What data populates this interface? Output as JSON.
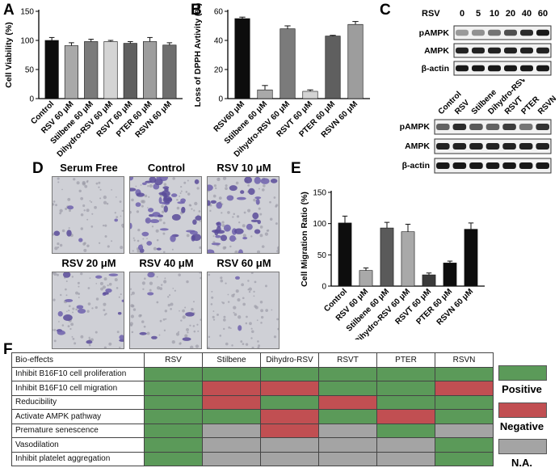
{
  "panels": {
    "a": "A",
    "b": "B",
    "c": "C",
    "d": "D",
    "e": "E",
    "f": "F"
  },
  "colors": {
    "positive": "#5b9a59",
    "negative": "#c14f52",
    "na": "#a4a4a4"
  },
  "chart_data": [
    {
      "id": "A",
      "type": "bar",
      "title": "",
      "xlabel": "",
      "ylabel": "Cell Viability (%)",
      "ylim": [
        0,
        150
      ],
      "yticks": [
        0,
        50,
        100,
        150
      ],
      "categories": [
        "Control",
        "RSV 60 μM",
        "Stilbene 60 μM",
        "Dihydro-RSV 60 μM",
        "RSVT 60 μM",
        "PTER 60 μM",
        "RSVN 60 μM"
      ],
      "values": [
        100,
        91,
        98,
        98,
        95,
        98,
        92
      ],
      "errors": [
        5,
        5,
        4,
        2,
        3,
        7,
        4
      ],
      "bar_colors": [
        "#0d0d0d",
        "#a9a9a9",
        "#7b7b7b",
        "#d4d4d4",
        "#5f5f5f",
        "#9d9d9d",
        "#6e6e6e"
      ],
      "grid": false
    },
    {
      "id": "B",
      "type": "bar",
      "title": "",
      "xlabel": "",
      "ylabel": "Loss of DPPH Avtivity (%)",
      "ylim": [
        0,
        60
      ],
      "yticks": [
        0,
        20,
        40,
        60
      ],
      "categories": [
        "RSV60 μM",
        "Stilbene 60 μM",
        "Dihydro-RSV 60 μM",
        "RSVT 60 μM",
        "PTER 60 μM",
        "RSVN 60 μM"
      ],
      "values": [
        55,
        6,
        48,
        5,
        43,
        51
      ],
      "errors": [
        1,
        3,
        2,
        1,
        0.5,
        2
      ],
      "bar_colors": [
        "#0d0d0d",
        "#a9a9a9",
        "#7b7b7b",
        "#d4d4d4",
        "#5f5f5f",
        "#9d9d9d"
      ],
      "grid": false
    },
    {
      "id": "E",
      "type": "bar",
      "title": "",
      "xlabel": "",
      "ylabel": "Cell Migration Ratio (%)",
      "ylim": [
        0,
        150
      ],
      "yticks": [
        0,
        50,
        100,
        150
      ],
      "categories": [
        "Control",
        "RSV 60 μM",
        "Stilbene 60 μM",
        "Dihydro-RSV 60 μM",
        "RSVT 60 μM",
        "PTER 60 μM",
        "RSVN 60 μM"
      ],
      "values": [
        101,
        25,
        93,
        87,
        18,
        37,
        91
      ],
      "errors": [
        11,
        4,
        9,
        12,
        3,
        3,
        10
      ],
      "bar_colors": [
        "#0d0d0d",
        "#a9a9a9",
        "#5a5a5a",
        "#a9a9a9",
        "#3a3a3a",
        "#0d0d0d",
        "#0d0d0d"
      ],
      "grid": false
    }
  ],
  "blot_top": {
    "treatment_label": "RSV",
    "doses": [
      "0",
      "5",
      "10",
      "20",
      "40",
      "60"
    ],
    "rows": [
      "pAMPK",
      "AMPK",
      "β-actin"
    ],
    "intensity": [
      [
        0.25,
        0.3,
        0.45,
        0.65,
        0.85,
        0.95
      ],
      [
        0.9,
        0.9,
        0.9,
        0.9,
        0.9,
        0.9
      ],
      [
        0.95,
        0.95,
        0.95,
        0.95,
        0.95,
        0.95
      ]
    ]
  },
  "blot_bottom": {
    "lanes": [
      "Control",
      "RSV",
      "Stilbene",
      "Dihydro-RSV",
      "RSVT",
      "PTER",
      "RSVN"
    ],
    "rows": [
      "pAMPK",
      "AMPK",
      "β-actin"
    ],
    "intensity": [
      [
        0.55,
        0.85,
        0.6,
        0.55,
        0.75,
        0.45,
        0.8
      ],
      [
        0.9,
        0.9,
        0.9,
        0.9,
        0.9,
        0.9,
        0.9
      ],
      [
        0.95,
        0.95,
        0.95,
        0.95,
        0.95,
        0.95,
        0.95
      ]
    ]
  },
  "micrographs": [
    {
      "label": "Serum Free",
      "density": 0.08
    },
    {
      "label": "Control",
      "density": 0.85
    },
    {
      "label": "RSV 10 μM",
      "density": 0.6
    },
    {
      "label": "RSV 20 μM",
      "density": 0.3
    },
    {
      "label": "RSV 40 μM",
      "density": 0.1
    },
    {
      "label": "RSV 60 μM",
      "density": 0.03
    }
  ],
  "table": {
    "header": [
      "Bio-effects",
      "RSV",
      "Stilbene",
      "Dihydro-RSV",
      "RSVT",
      "PTER",
      "RSVN"
    ],
    "rows": [
      {
        "label": "Inhibit B16F10 cell proliferation",
        "cells": [
          "positive",
          "positive",
          "positive",
          "positive",
          "positive",
          "positive"
        ]
      },
      {
        "label": "Inhibit B16F10 cell migration",
        "cells": [
          "positive",
          "negative",
          "negative",
          "positive",
          "positive",
          "negative"
        ]
      },
      {
        "label": "Reducibility",
        "cells": [
          "positive",
          "negative",
          "positive",
          "negative",
          "positive",
          "positive"
        ]
      },
      {
        "label": "Activate AMPK pathway",
        "cells": [
          "positive",
          "positive",
          "negative",
          "positive",
          "negative",
          "positive"
        ]
      },
      {
        "label": "Premature senescence",
        "cells": [
          "positive",
          "na",
          "negative",
          "na",
          "positive",
          "na"
        ]
      },
      {
        "label": "Vasodilation",
        "cells": [
          "positive",
          "na",
          "na",
          "na",
          "na",
          "positive"
        ]
      },
      {
        "label": "Inhibit platelet aggregation",
        "cells": [
          "positive",
          "na",
          "na",
          "na",
          "na",
          "positive"
        ]
      }
    ]
  },
  "legend": [
    {
      "key": "positive",
      "label": "Positive"
    },
    {
      "key": "negative",
      "label": "Negative"
    },
    {
      "key": "na",
      "label": "N.A."
    }
  ]
}
